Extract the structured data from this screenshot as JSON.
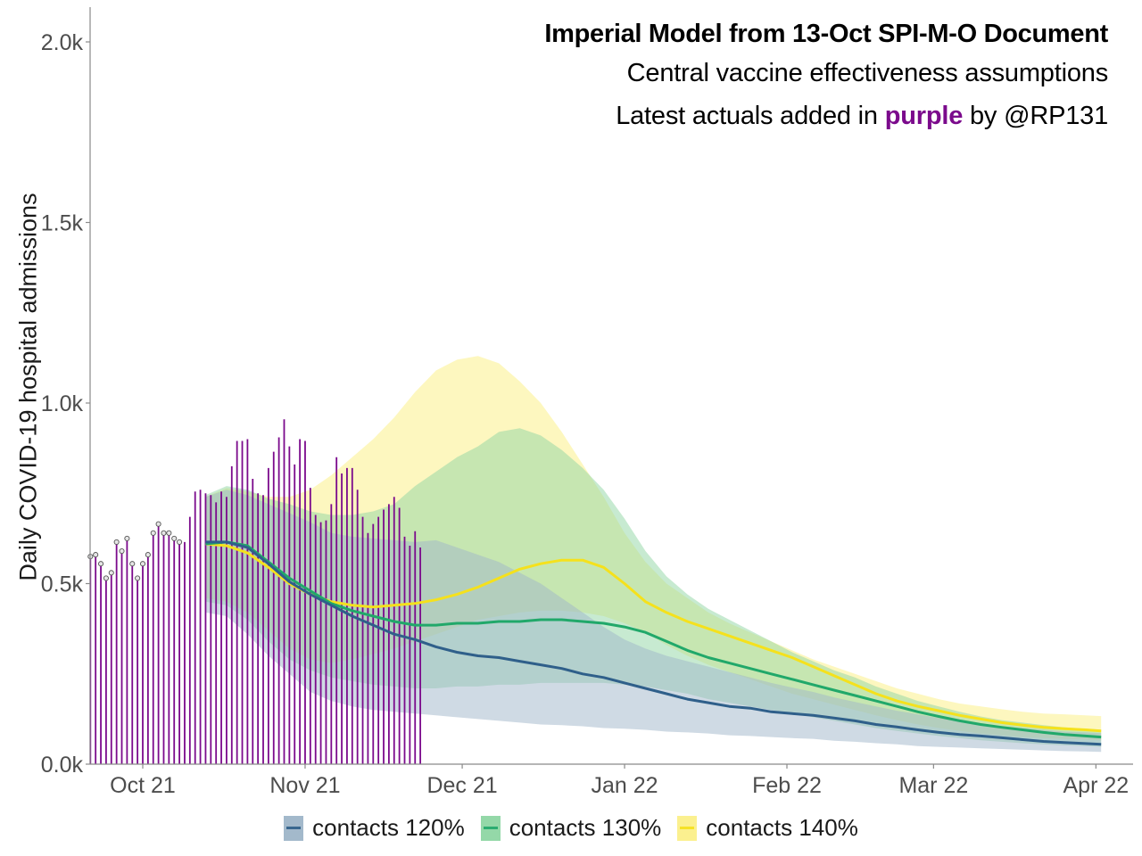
{
  "chart_data": {
    "type": "line",
    "title": "Imperial Model from 13-Oct SPI-M-O Document",
    "subtitle_1": "Central vaccine effectiveness assumptions",
    "subtitle_2_prefix": "Latest actuals added in ",
    "subtitle_2_accent": "purple",
    "subtitle_2_suffix": " by @RP131",
    "ylabel": "Daily COVID-19 hospital admissions",
    "xlabel": "",
    "ylim": [
      0,
      2100
    ],
    "y_ticks": [
      {
        "value": 0,
        "label": "0.0k"
      },
      {
        "value": 500,
        "label": "0.5k"
      },
      {
        "value": 1000,
        "label": "1.0k"
      },
      {
        "value": 1500,
        "label": "1.5k"
      },
      {
        "value": 2000,
        "label": "2.0k"
      }
    ],
    "x_range_days": [
      -9,
      212
    ],
    "x_ticks": [
      {
        "day": 0,
        "label": "Oct 21"
      },
      {
        "day": 31,
        "label": "Nov 21"
      },
      {
        "day": 61,
        "label": "Dec 21"
      },
      {
        "day": 92,
        "label": "Jan 22"
      },
      {
        "day": 123,
        "label": "Feb 22"
      },
      {
        "day": 151,
        "label": "Mar 22"
      },
      {
        "day": 182,
        "label": "Apr 22"
      }
    ],
    "x_origin": "2021-10-01",
    "grid": false,
    "legend_position": "bottom",
    "colors": {
      "actuals": "#7b0a8c",
      "contacts_120": "#2f5f8a",
      "contacts_130": "#21a86a",
      "contacts_140": "#f5e11c",
      "band_120": "#9fb6c9",
      "band_130": "#8fd6a4",
      "band_140": "#fbf08a",
      "axis": "#8a8a8a",
      "tick_text": "#4d4d4d"
    },
    "actuals": {
      "start_day": -10,
      "marked_count": 18,
      "values": [
        575,
        580,
        555,
        515,
        530,
        615,
        590,
        625,
        555,
        515,
        555,
        580,
        640,
        665,
        640,
        640,
        625,
        615,
        615,
        685,
        755,
        760,
        750,
        745,
        725,
        755,
        740,
        825,
        895,
        895,
        900,
        790,
        750,
        745,
        820,
        865,
        905,
        955,
        880,
        830,
        900,
        895,
        765,
        690,
        670,
        675,
        720,
        850,
        805,
        820,
        820,
        760,
        685,
        640,
        665,
        685,
        705,
        720,
        740,
        710,
        630,
        605,
        645,
        600
      ]
    },
    "series": [
      {
        "name": "contacts 120%",
        "key": "contacts_120",
        "x": [
          12,
          16,
          20,
          24,
          28,
          32,
          36,
          40,
          44,
          48,
          52,
          56,
          60,
          64,
          68,
          72,
          76,
          80,
          84,
          88,
          92,
          96,
          100,
          104,
          108,
          112,
          116,
          120,
          124,
          128,
          132,
          136,
          140,
          144,
          148,
          152,
          156,
          160,
          164,
          168,
          172,
          176,
          180,
          183
        ],
        "values": [
          615,
          615,
          600,
          555,
          505,
          470,
          440,
          410,
          385,
          360,
          345,
          325,
          310,
          300,
          295,
          285,
          275,
          265,
          250,
          240,
          225,
          210,
          195,
          180,
          170,
          160,
          155,
          145,
          140,
          135,
          128,
          120,
          110,
          103,
          95,
          88,
          82,
          78,
          73,
          68,
          63,
          60,
          57,
          55
        ],
        "lower": [
          420,
          410,
          360,
          300,
          250,
          200,
          175,
          160,
          150,
          145,
          140,
          135,
          130,
          125,
          120,
          115,
          110,
          108,
          105,
          100,
          98,
          95,
          90,
          88,
          85,
          80,
          78,
          75,
          72,
          70,
          65,
          62,
          58,
          55,
          50,
          48,
          46,
          44,
          42,
          40,
          38,
          36,
          35,
          34
        ],
        "upper": [
          740,
          760,
          745,
          720,
          695,
          670,
          640,
          630,
          625,
          620,
          615,
          620,
          600,
          580,
          560,
          530,
          500,
          460,
          420,
          380,
          345,
          320,
          300,
          285,
          270,
          255,
          240,
          225,
          212,
          200,
          185,
          172,
          160,
          148,
          138,
          128,
          120,
          112,
          105,
          100,
          95,
          90,
          88,
          86
        ]
      },
      {
        "name": "contacts 130%",
        "key": "contacts_130",
        "x": [
          12,
          16,
          20,
          24,
          28,
          32,
          36,
          40,
          44,
          48,
          52,
          56,
          60,
          64,
          68,
          72,
          76,
          80,
          84,
          88,
          92,
          96,
          100,
          104,
          108,
          112,
          116,
          120,
          124,
          128,
          132,
          136,
          140,
          144,
          148,
          152,
          156,
          160,
          164,
          168,
          172,
          176,
          180,
          183
        ],
        "values": [
          610,
          615,
          605,
          560,
          515,
          480,
          445,
          425,
          410,
          395,
          385,
          385,
          390,
          390,
          395,
          395,
          400,
          400,
          395,
          390,
          380,
          365,
          340,
          315,
          295,
          280,
          265,
          250,
          235,
          220,
          205,
          190,
          175,
          160,
          145,
          132,
          120,
          110,
          102,
          95,
          88,
          82,
          78,
          75
        ],
        "lower": [
          450,
          440,
          400,
          340,
          290,
          260,
          240,
          230,
          220,
          215,
          210,
          210,
          215,
          215,
          220,
          220,
          225,
          225,
          225,
          225,
          220,
          215,
          205,
          195,
          180,
          170,
          160,
          150,
          140,
          130,
          120,
          110,
          100,
          92,
          85,
          78,
          72,
          66,
          62,
          58,
          55,
          52,
          50,
          48
        ],
        "upper": [
          745,
          770,
          760,
          735,
          720,
          700,
          690,
          690,
          700,
          720,
          770,
          810,
          850,
          880,
          920,
          930,
          910,
          870,
          820,
          760,
          680,
          590,
          520,
          470,
          430,
          400,
          370,
          340,
          310,
          285,
          260,
          240,
          215,
          195,
          175,
          160,
          145,
          132,
          122,
          115,
          108,
          102,
          98,
          95
        ]
      },
      {
        "name": "contacts 140%",
        "key": "contacts_140",
        "x": [
          12,
          16,
          20,
          24,
          28,
          32,
          36,
          40,
          44,
          48,
          52,
          56,
          60,
          64,
          68,
          72,
          76,
          80,
          84,
          88,
          92,
          96,
          100,
          104,
          108,
          112,
          116,
          120,
          124,
          128,
          132,
          136,
          140,
          144,
          148,
          152,
          156,
          160,
          164,
          168,
          172,
          176,
          180,
          183
        ],
        "values": [
          610,
          605,
          585,
          545,
          500,
          470,
          450,
          440,
          435,
          440,
          445,
          455,
          470,
          490,
          515,
          540,
          555,
          565,
          565,
          545,
          500,
          450,
          420,
          395,
          375,
          355,
          335,
          315,
          295,
          270,
          245,
          220,
          195,
          175,
          160,
          148,
          135,
          125,
          115,
          108,
          102,
          98,
          95,
          92
        ],
        "lower": [
          460,
          450,
          420,
          370,
          320,
          290,
          280,
          290,
          305,
          320,
          340,
          360,
          380,
          400,
          410,
          420,
          425,
          425,
          420,
          410,
          390,
          365,
          330,
          300,
          275,
          255,
          235,
          215,
          195,
          180,
          165,
          150,
          135,
          122,
          110,
          100,
          92,
          85,
          80,
          75,
          72,
          70,
          68,
          66
        ],
        "upper": [
          740,
          765,
          755,
          740,
          740,
          760,
          800,
          850,
          900,
          960,
          1030,
          1090,
          1120,
          1130,
          1110,
          1060,
          1000,
          920,
          830,
          740,
          640,
          560,
          500,
          460,
          420,
          390,
          365,
          340,
          315,
          290,
          270,
          250,
          230,
          210,
          195,
          180,
          168,
          160,
          152,
          145,
          140,
          138,
          135,
          133
        ]
      }
    ]
  },
  "legend": {
    "items": [
      {
        "label": "contacts 120%",
        "key": "contacts_120"
      },
      {
        "label": "contacts 130%",
        "key": "contacts_130"
      },
      {
        "label": "contacts 140%",
        "key": "contacts_140"
      }
    ]
  }
}
